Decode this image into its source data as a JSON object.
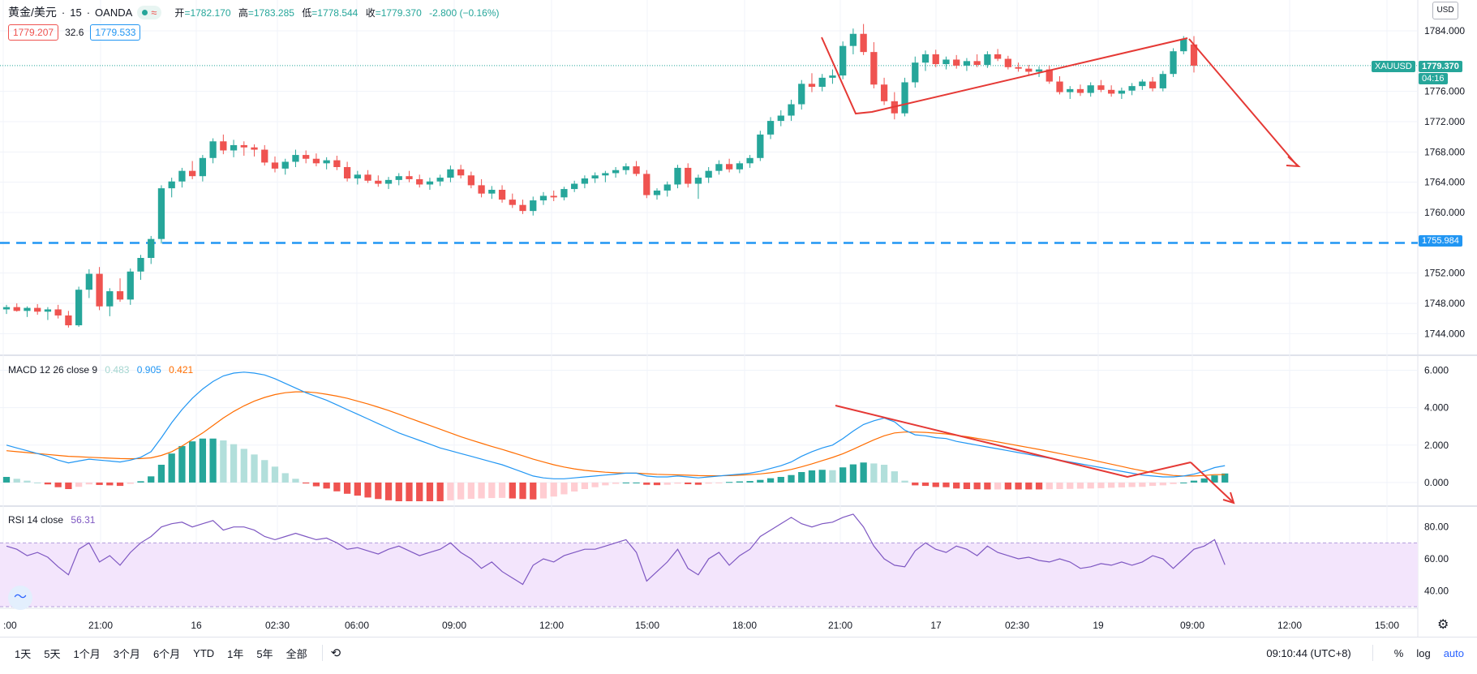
{
  "header": {
    "symbol": "黄金/美元",
    "interval_sep": "·",
    "interval": "15",
    "source": "OANDA",
    "market_status_icon": "green-dot-icon",
    "wave_icon": "wave-icon",
    "open_label": "开",
    "open": "=1782.170",
    "high_label": "高",
    "high": "=1783.285",
    "low_label": "低",
    "low": "=1778.544",
    "close_label": "收",
    "close": "=1779.370",
    "change": "-2.800 (−0.16%)"
  },
  "quotes": {
    "sell": "1779.207",
    "spread": "32.6",
    "buy": "1779.533"
  },
  "price_axis": {
    "currency": "USD",
    "ticks": [
      "1784.000",
      "1776.000",
      "1772.000",
      "1768.000",
      "1764.000",
      "1760.000",
      "1752.000",
      "1748.000",
      "1744.000"
    ],
    "symbol_tag": "XAUUSD",
    "last_price": "1779.370",
    "countdown": "04:16",
    "hline_price": "1755.984"
  },
  "macd_legend": {
    "name": "MACD 12 26 close 9",
    "hist": "0.483",
    "macd": "0.905",
    "signal": "0.421"
  },
  "macd_axis": [
    "6.000",
    "4.000",
    "2.000",
    "0.000"
  ],
  "rsi_legend": {
    "name": "RSI 14 close",
    "value": "56.31"
  },
  "rsi_axis": [
    "80.00",
    "60.00",
    "40.00"
  ],
  "time_axis": [
    ":00",
    "21:00",
    "16",
    "02:30",
    "06:00",
    "09:00",
    "12:00",
    "15:00",
    "18:00",
    "21:00",
    "17",
    "02:30",
    "19",
    "09:00",
    "12:00",
    "15:00"
  ],
  "bottom": {
    "ranges": [
      "1天",
      "5天",
      "1个月",
      "3个月",
      "6个月",
      "YTD",
      "1年",
      "5年",
      "全部"
    ],
    "replay_icon": "replay-icon",
    "clock": "09:10:44 (UTC+8)",
    "percent": "%",
    "log": "log",
    "auto": "auto",
    "settings_icon": "gear-icon"
  },
  "colors": {
    "up": "#26a69a",
    "down": "#ef5350",
    "macd": "#2196f3",
    "signal": "#ff6d00",
    "rsi": "#7e57c2",
    "rsi_band": "#f3e5fc",
    "hline": "#2196f3",
    "annotation": "#e53935"
  },
  "chart_data": [
    {
      "type": "candlestick",
      "interval": "15",
      "yrange": [
        1742,
        1787
      ],
      "hline": 1755.984,
      "candles": [
        [
          1747.2,
          1747.8,
          1746.6,
          1747.5
        ],
        [
          1747.5,
          1748.0,
          1746.9,
          1747.0
        ],
        [
          1747.0,
          1747.6,
          1746.2,
          1747.4
        ],
        [
          1747.4,
          1747.9,
          1746.5,
          1746.9
        ],
        [
          1746.9,
          1747.5,
          1745.8,
          1747.2
        ],
        [
          1747.2,
          1747.8,
          1746.0,
          1746.4
        ],
        [
          1746.4,
          1747.0,
          1744.8,
          1745.1
        ],
        [
          1745.1,
          1750.2,
          1744.9,
          1749.8
        ],
        [
          1749.8,
          1752.5,
          1748.7,
          1751.9
        ],
        [
          1751.9,
          1752.8,
          1747.1,
          1747.6
        ],
        [
          1747.6,
          1750.0,
          1746.3,
          1749.6
        ],
        [
          1749.6,
          1751.3,
          1748.2,
          1748.5
        ],
        [
          1748.5,
          1752.6,
          1747.8,
          1752.2
        ],
        [
          1752.2,
          1754.4,
          1751.1,
          1754.0
        ],
        [
          1754.0,
          1756.9,
          1753.2,
          1756.5
        ],
        [
          1756.5,
          1763.6,
          1755.9,
          1763.2
        ],
        [
          1763.2,
          1764.6,
          1762.0,
          1764.1
        ],
        [
          1764.1,
          1765.9,
          1763.3,
          1765.5
        ],
        [
          1765.5,
          1766.8,
          1764.4,
          1764.8
        ],
        [
          1764.8,
          1767.6,
          1764.1,
          1767.2
        ],
        [
          1767.2,
          1769.8,
          1766.5,
          1769.4
        ],
        [
          1769.4,
          1770.3,
          1767.7,
          1768.2
        ],
        [
          1768.2,
          1769.6,
          1767.3,
          1768.9
        ],
        [
          1768.9,
          1769.4,
          1767.5,
          1768.6
        ],
        [
          1768.6,
          1769.0,
          1767.4,
          1768.3
        ],
        [
          1768.3,
          1768.9,
          1766.2,
          1766.6
        ],
        [
          1766.6,
          1767.4,
          1765.3,
          1765.8
        ],
        [
          1765.8,
          1767.1,
          1765.0,
          1766.7
        ],
        [
          1766.7,
          1768.3,
          1766.0,
          1767.6
        ],
        [
          1767.6,
          1768.2,
          1766.5,
          1767.1
        ],
        [
          1767.1,
          1767.8,
          1766.1,
          1766.5
        ],
        [
          1766.5,
          1767.3,
          1765.7,
          1766.9
        ],
        [
          1766.9,
          1767.5,
          1765.6,
          1766.0
        ],
        [
          1766.0,
          1766.7,
          1764.1,
          1764.5
        ],
        [
          1764.5,
          1765.5,
          1763.7,
          1765.0
        ],
        [
          1765.0,
          1765.6,
          1763.9,
          1764.2
        ],
        [
          1764.2,
          1764.9,
          1763.4,
          1763.8
        ],
        [
          1763.8,
          1764.7,
          1763.1,
          1764.3
        ],
        [
          1764.3,
          1765.2,
          1763.6,
          1764.8
        ],
        [
          1764.8,
          1765.5,
          1764.0,
          1764.4
        ],
        [
          1764.4,
          1765.0,
          1763.3,
          1763.7
        ],
        [
          1763.7,
          1764.6,
          1763.0,
          1764.1
        ],
        [
          1764.1,
          1765.0,
          1763.5,
          1764.6
        ],
        [
          1764.6,
          1766.2,
          1764.0,
          1765.7
        ],
        [
          1765.7,
          1766.3,
          1764.5,
          1764.9
        ],
        [
          1764.9,
          1765.4,
          1763.2,
          1763.6
        ],
        [
          1763.6,
          1764.4,
          1762.0,
          1762.5
        ],
        [
          1762.5,
          1763.5,
          1761.8,
          1763.0
        ],
        [
          1763.0,
          1763.6,
          1761.3,
          1761.7
        ],
        [
          1761.7,
          1762.5,
          1760.6,
          1761.0
        ],
        [
          1761.0,
          1761.7,
          1759.8,
          1760.2
        ],
        [
          1760.2,
          1762.1,
          1759.6,
          1761.6
        ],
        [
          1761.6,
          1762.7,
          1761.0,
          1762.2
        ],
        [
          1762.2,
          1762.9,
          1761.5,
          1762.0
        ],
        [
          1762.0,
          1763.4,
          1761.6,
          1763.1
        ],
        [
          1763.1,
          1764.2,
          1762.7,
          1763.8
        ],
        [
          1763.8,
          1764.9,
          1763.2,
          1764.5
        ],
        [
          1764.5,
          1765.3,
          1763.9,
          1764.9
        ],
        [
          1764.9,
          1765.5,
          1764.0,
          1765.2
        ],
        [
          1765.2,
          1766.0,
          1764.6,
          1765.6
        ],
        [
          1765.6,
          1766.5,
          1765.0,
          1766.1
        ],
        [
          1766.1,
          1766.8,
          1764.8,
          1765.1
        ],
        [
          1765.1,
          1765.6,
          1761.9,
          1762.3
        ],
        [
          1762.3,
          1763.2,
          1761.7,
          1762.9
        ],
        [
          1762.9,
          1764.1,
          1762.1,
          1763.7
        ],
        [
          1763.7,
          1766.3,
          1763.2,
          1765.9
        ],
        [
          1765.9,
          1766.5,
          1763.3,
          1763.8
        ],
        [
          1763.8,
          1765.0,
          1761.8,
          1764.6
        ],
        [
          1764.6,
          1766.0,
          1763.9,
          1765.5
        ],
        [
          1765.5,
          1766.9,
          1765.0,
          1766.4
        ],
        [
          1766.4,
          1767.1,
          1765.3,
          1765.7
        ],
        [
          1765.7,
          1766.8,
          1765.2,
          1766.5
        ],
        [
          1766.5,
          1767.6,
          1765.9,
          1767.2
        ],
        [
          1767.2,
          1770.8,
          1766.8,
          1770.3
        ],
        [
          1770.3,
          1772.6,
          1769.7,
          1772.1
        ],
        [
          1772.1,
          1773.5,
          1771.4,
          1772.8
        ],
        [
          1772.8,
          1774.9,
          1772.1,
          1774.3
        ],
        [
          1774.3,
          1777.5,
          1773.6,
          1777.0
        ],
        [
          1777.0,
          1778.4,
          1775.9,
          1776.6
        ],
        [
          1776.6,
          1778.3,
          1776.0,
          1777.8
        ],
        [
          1777.8,
          1778.9,
          1777.0,
          1778.1
        ],
        [
          1778.1,
          1782.6,
          1777.6,
          1782.0
        ],
        [
          1782.0,
          1784.3,
          1780.9,
          1783.6
        ],
        [
          1783.6,
          1784.9,
          1780.8,
          1781.2
        ],
        [
          1781.2,
          1782.5,
          1776.4,
          1776.9
        ],
        [
          1776.9,
          1777.8,
          1774.2,
          1774.7
        ],
        [
          1774.7,
          1775.9,
          1772.3,
          1773.1
        ],
        [
          1773.1,
          1777.8,
          1772.7,
          1777.2
        ],
        [
          1777.2,
          1780.6,
          1776.5,
          1779.8
        ],
        [
          1779.8,
          1781.4,
          1778.7,
          1780.9
        ],
        [
          1780.9,
          1781.5,
          1779.2,
          1779.6
        ],
        [
          1779.6,
          1780.6,
          1778.9,
          1780.2
        ],
        [
          1780.2,
          1780.8,
          1779.0,
          1779.4
        ],
        [
          1779.4,
          1780.4,
          1778.7,
          1780.0
        ],
        [
          1780.0,
          1780.9,
          1779.2,
          1779.5
        ],
        [
          1779.5,
          1781.3,
          1779.1,
          1780.9
        ],
        [
          1780.9,
          1781.6,
          1780.0,
          1780.3
        ],
        [
          1780.3,
          1780.7,
          1778.9,
          1779.2
        ],
        [
          1779.2,
          1779.8,
          1778.6,
          1779.0
        ],
        [
          1779.0,
          1779.5,
          1778.2,
          1778.6
        ],
        [
          1778.6,
          1779.3,
          1777.9,
          1778.9
        ],
        [
          1778.9,
          1779.4,
          1777.0,
          1777.3
        ],
        [
          1777.3,
          1778.0,
          1775.6,
          1775.9
        ],
        [
          1775.9,
          1776.7,
          1775.0,
          1776.3
        ],
        [
          1776.3,
          1776.9,
          1775.4,
          1775.8
        ],
        [
          1775.8,
          1777.2,
          1775.3,
          1776.8
        ],
        [
          1776.8,
          1777.5,
          1775.9,
          1776.2
        ],
        [
          1776.2,
          1776.8,
          1775.3,
          1775.7
        ],
        [
          1775.7,
          1776.5,
          1775.0,
          1776.1
        ],
        [
          1776.1,
          1777.1,
          1775.5,
          1776.7
        ],
        [
          1776.7,
          1777.6,
          1776.2,
          1777.3
        ],
        [
          1777.3,
          1777.9,
          1776.0,
          1776.4
        ],
        [
          1776.4,
          1778.7,
          1776.0,
          1778.3
        ],
        [
          1778.3,
          1781.7,
          1777.9,
          1781.3
        ],
        [
          1781.3,
          1783.3,
          1780.9,
          1782.9
        ],
        [
          1782.2,
          1783.3,
          1778.5,
          1779.4
        ]
      ]
    },
    {
      "type": "line",
      "name": "MACD 12 26 close 9",
      "ylim": [
        -1,
        6.5
      ],
      "macd": [
        2.0,
        1.85,
        1.7,
        1.55,
        1.4,
        1.2,
        1.05,
        1.15,
        1.25,
        1.2,
        1.15,
        1.1,
        1.2,
        1.35,
        1.65,
        2.4,
        3.2,
        3.9,
        4.5,
        5.0,
        5.4,
        5.7,
        5.85,
        5.9,
        5.85,
        5.75,
        5.55,
        5.3,
        5.05,
        4.8,
        4.6,
        4.4,
        4.15,
        3.9,
        3.65,
        3.4,
        3.15,
        2.9,
        2.65,
        2.45,
        2.25,
        2.05,
        1.85,
        1.7,
        1.55,
        1.4,
        1.25,
        1.1,
        0.95,
        0.75,
        0.55,
        0.35,
        0.25,
        0.2,
        0.2,
        0.25,
        0.3,
        0.35,
        0.4,
        0.45,
        0.5,
        0.5,
        0.35,
        0.3,
        0.3,
        0.35,
        0.3,
        0.25,
        0.3,
        0.35,
        0.4,
        0.45,
        0.5,
        0.6,
        0.75,
        0.9,
        1.1,
        1.4,
        1.65,
        1.85,
        2.0,
        2.35,
        2.75,
        3.1,
        3.3,
        3.45,
        3.25,
        2.8,
        2.55,
        2.5,
        2.4,
        2.35,
        2.2,
        2.1,
        2.0,
        1.9,
        1.8,
        1.7,
        1.6,
        1.5,
        1.4,
        1.3,
        1.2,
        1.1,
        1.0,
        0.9,
        0.8,
        0.7,
        0.6,
        0.5,
        0.4,
        0.35,
        0.3,
        0.3,
        0.35,
        0.45,
        0.6,
        0.8,
        0.905
      ],
      "signal": [
        1.7,
        1.65,
        1.6,
        1.55,
        1.5,
        1.45,
        1.4,
        1.38,
        1.35,
        1.33,
        1.3,
        1.28,
        1.27,
        1.28,
        1.32,
        1.45,
        1.65,
        1.95,
        2.3,
        2.65,
        3.05,
        3.45,
        3.8,
        4.1,
        4.35,
        4.55,
        4.7,
        4.8,
        4.85,
        4.85,
        4.8,
        4.72,
        4.62,
        4.5,
        4.35,
        4.2,
        4.03,
        3.85,
        3.65,
        3.45,
        3.25,
        3.05,
        2.85,
        2.65,
        2.45,
        2.27,
        2.1,
        1.93,
        1.77,
        1.6,
        1.43,
        1.25,
        1.1,
        0.95,
        0.83,
        0.73,
        0.65,
        0.6,
        0.55,
        0.52,
        0.5,
        0.5,
        0.47,
        0.44,
        0.42,
        0.41,
        0.39,
        0.37,
        0.36,
        0.36,
        0.37,
        0.39,
        0.42,
        0.46,
        0.52,
        0.6,
        0.7,
        0.84,
        1.0,
        1.17,
        1.34,
        1.54,
        1.78,
        2.03,
        2.28,
        2.5,
        2.65,
        2.7,
        2.7,
        2.68,
        2.64,
        2.6,
        2.52,
        2.45,
        2.36,
        2.27,
        2.17,
        2.07,
        1.97,
        1.87,
        1.77,
        1.66,
        1.55,
        1.44,
        1.33,
        1.22,
        1.1,
        0.98,
        0.86,
        0.74,
        0.63,
        0.53,
        0.45,
        0.38,
        0.35,
        0.35,
        0.38,
        0.42,
        0.421
      ]
    },
    {
      "type": "line",
      "name": "RSI 14 close",
      "ylim": [
        30,
        90
      ],
      "bands": [
        70,
        30
      ],
      "values": [
        68,
        66,
        62,
        64,
        61,
        55,
        50,
        66,
        70,
        58,
        62,
        56,
        64,
        70,
        74,
        80,
        82,
        83,
        80,
        82,
        84,
        78,
        80,
        80,
        78,
        74,
        72,
        74,
        76,
        74,
        72,
        73,
        70,
        66,
        67,
        65,
        63,
        66,
        68,
        65,
        62,
        64,
        66,
        70,
        64,
        60,
        54,
        58,
        52,
        48,
        44,
        56,
        60,
        58,
        62,
        64,
        66,
        66,
        68,
        70,
        72,
        64,
        46,
        52,
        58,
        66,
        54,
        50,
        60,
        64,
        56,
        62,
        66,
        74,
        78,
        82,
        86,
        82,
        80,
        82,
        83,
        86,
        88,
        80,
        68,
        60,
        56,
        55,
        65,
        70,
        66,
        64,
        68,
        66,
        62,
        68,
        64,
        62,
        60,
        61,
        59,
        58,
        60,
        58,
        54,
        55,
        57,
        56,
        58,
        56,
        58,
        62,
        60,
        54,
        60,
        66,
        68,
        72,
        56.31
      ]
    }
  ]
}
